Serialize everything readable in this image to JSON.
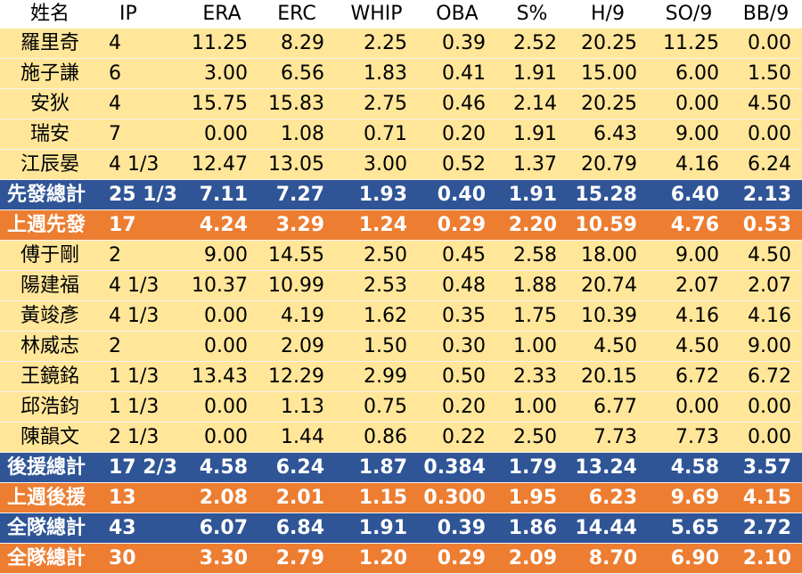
{
  "table": {
    "columns": [
      "姓名",
      "IP",
      "ERA",
      "ERC",
      "WHIP",
      "OBA",
      "S%",
      "H/9",
      "SO/9",
      "BB/9"
    ],
    "rows": [
      {
        "type": "player",
        "cells": [
          "羅里奇",
          "4",
          "11.25",
          "8.29",
          "2.25",
          "0.39",
          "2.52",
          "20.25",
          "11.25",
          "0.00"
        ]
      },
      {
        "type": "player",
        "cells": [
          "施子謙",
          "6",
          "3.00",
          "6.56",
          "1.83",
          "0.41",
          "1.91",
          "15.00",
          "6.00",
          "1.50"
        ]
      },
      {
        "type": "player",
        "cells": [
          "安狄",
          "4",
          "15.75",
          "15.83",
          "2.75",
          "0.46",
          "2.14",
          "20.25",
          "0.00",
          "4.50"
        ]
      },
      {
        "type": "player",
        "cells": [
          "瑞安",
          "7",
          "0.00",
          "1.08",
          "0.71",
          "0.20",
          "1.91",
          "6.43",
          "9.00",
          "0.00"
        ]
      },
      {
        "type": "player",
        "cells": [
          "江辰晏",
          "4 1/3",
          "12.47",
          "13.05",
          "3.00",
          "0.52",
          "1.37",
          "20.79",
          "4.16",
          "6.24"
        ]
      },
      {
        "type": "blue",
        "cells": [
          "先發總計",
          "25 1/3",
          "7.11",
          "7.27",
          "1.93",
          "0.40",
          "1.91",
          "15.28",
          "6.40",
          "2.13"
        ]
      },
      {
        "type": "orange",
        "cells": [
          "上週先發",
          "17",
          "4.24",
          "3.29",
          "1.24",
          "0.29",
          "2.20",
          "10.59",
          "4.76",
          "0.53"
        ]
      },
      {
        "type": "player",
        "cells": [
          "傅于剛",
          "2",
          "9.00",
          "14.55",
          "2.50",
          "0.45",
          "2.58",
          "18.00",
          "9.00",
          "4.50"
        ]
      },
      {
        "type": "player",
        "cells": [
          "陽建福",
          "4 1/3",
          "10.37",
          "10.99",
          "2.53",
          "0.48",
          "1.88",
          "20.74",
          "2.07",
          "2.07"
        ]
      },
      {
        "type": "player",
        "cells": [
          "黃竣彥",
          "4 1/3",
          "0.00",
          "4.19",
          "1.62",
          "0.35",
          "1.75",
          "10.39",
          "4.16",
          "4.16"
        ]
      },
      {
        "type": "player",
        "cells": [
          "林威志",
          "2",
          "0.00",
          "2.09",
          "1.50",
          "0.30",
          "1.00",
          "4.50",
          "4.50",
          "9.00"
        ]
      },
      {
        "type": "player",
        "cells": [
          "王鏡銘",
          "1 1/3",
          "13.43",
          "12.29",
          "2.99",
          "0.50",
          "2.33",
          "20.15",
          "6.72",
          "6.72"
        ]
      },
      {
        "type": "player",
        "cells": [
          "邱浩鈞",
          "1 1/3",
          "0.00",
          "1.13",
          "0.75",
          "0.20",
          "1.00",
          "6.77",
          "0.00",
          "0.00"
        ]
      },
      {
        "type": "player",
        "cells": [
          "陳韻文",
          "2 1/3",
          "0.00",
          "1.44",
          "0.86",
          "0.22",
          "2.50",
          "7.73",
          "7.73",
          "0.00"
        ]
      },
      {
        "type": "blue",
        "cells": [
          "後援總計",
          "17 2/3",
          "4.58",
          "6.24",
          "1.87",
          "0.384",
          "1.79",
          "13.24",
          "4.58",
          "3.57"
        ]
      },
      {
        "type": "orange",
        "cells": [
          "上週後援",
          "13",
          "2.08",
          "2.01",
          "1.15",
          "0.300",
          "1.95",
          "6.23",
          "9.69",
          "4.15"
        ]
      },
      {
        "type": "blue",
        "cells": [
          "全隊總計",
          "43",
          "6.07",
          "6.84",
          "1.91",
          "0.39",
          "1.86",
          "14.44",
          "5.65",
          "2.72"
        ]
      },
      {
        "type": "orange",
        "cells": [
          "全隊總計",
          "30",
          "3.30",
          "2.79",
          "1.20",
          "0.29",
          "2.09",
          "8.70",
          "6.90",
          "2.10"
        ]
      }
    ]
  },
  "colors": {
    "player_row_bg": "#FFE699",
    "total_row_bg": "#2F5597",
    "last_week_row_bg": "#ED7D31"
  }
}
